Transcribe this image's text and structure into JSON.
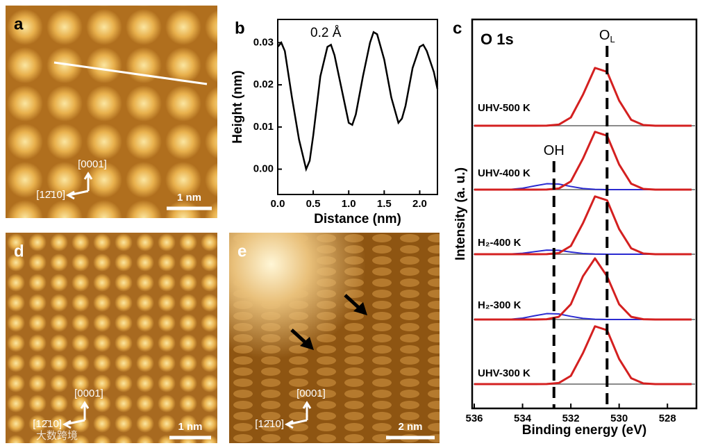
{
  "images": [
    {
      "letter": "a",
      "direction_up": "[0001]",
      "direction_left": "[12̄10]",
      "scale_bar": "1 nm"
    },
    {
      "letter": "d",
      "direction_up": "[0001]",
      "direction_left": "[12̄10]",
      "scale_bar": "1 nm",
      "watermark": "大数跨境"
    },
    {
      "letter": "e",
      "direction_up": "[0001]",
      "direction_left": "[12̄10]",
      "scale_bar": "2 nm"
    }
  ],
  "chart_data": [
    {
      "type": "line",
      "letter": "b",
      "annotation": "0.2 Å",
      "xlabel": "Distance (nm)",
      "ylabel": "Height (nm)",
      "color": "#000000",
      "x": [
        0,
        0.05,
        0.1,
        0.2,
        0.3,
        0.4,
        0.45,
        0.5,
        0.6,
        0.7,
        0.75,
        0.8,
        0.9,
        1.0,
        1.05,
        1.1,
        1.2,
        1.3,
        1.35,
        1.4,
        1.5,
        1.6,
        1.7,
        1.75,
        1.8,
        1.9,
        2.0,
        2.05,
        2.1,
        2.2,
        2.25
      ],
      "values": [
        0.029,
        0.03,
        0.028,
        0.017,
        0.007,
        0.0,
        0.002,
        0.008,
        0.022,
        0.029,
        0.0295,
        0.027,
        0.019,
        0.011,
        0.0105,
        0.013,
        0.022,
        0.03,
        0.0325,
        0.032,
        0.026,
        0.017,
        0.011,
        0.012,
        0.015,
        0.024,
        0.029,
        0.0295,
        0.028,
        0.023,
        0.019
      ],
      "xlim": [
        0,
        2.25
      ],
      "ylim": [
        -0.006,
        0.0355
      ],
      "xticks": [
        {
          "value": 0,
          "label": "0.0"
        },
        0.5,
        {
          "value": 1,
          "label": "1.0"
        },
        1.5,
        {
          "value": 2,
          "label": "2.0"
        }
      ],
      "yticks": [
        {
          "value": 0,
          "label": "0.00"
        },
        0.01,
        0.02,
        0.03
      ]
    },
    {
      "type": "spectra",
      "letter": "c",
      "title": "O 1s",
      "xlabel": "Binding energy (eV)",
      "ylabel": "Intensity (a. u.)",
      "xlim": [
        536,
        527
      ],
      "xticks": [
        536,
        534,
        532,
        530,
        528
      ],
      "ol_color": "#d42020",
      "oh_color": "#2a2ad0",
      "baseline_color": "#8a8a8a",
      "markers": [
        {
          "label": "O",
          "sub": "L",
          "value": 530.5
        },
        {
          "label": "OH",
          "value": 532.7
        }
      ],
      "x": [
        536,
        535.5,
        535,
        534.5,
        534,
        533.5,
        533,
        532.5,
        532,
        531.5,
        531,
        530.5,
        530,
        529.5,
        529,
        528.5,
        528,
        527.5,
        527
      ],
      "spectra": [
        {
          "name": "UHV-500 K",
          "ol": [
            0,
            0,
            0,
            0,
            0,
            0,
            0.001,
            0.018,
            0.135,
            0.506,
            0.946,
            0.882,
            0.411,
            0.096,
            0.011,
            0,
            0,
            0,
            0
          ]
        },
        {
          "name": "UHV-400 K",
          "ol": [
            0,
            0,
            0,
            0,
            0,
            0,
            0.001,
            0.018,
            0.135,
            0.506,
            0.946,
            0.882,
            0.411,
            0.096,
            0.011,
            0,
            0,
            0,
            0
          ],
          "oh": [
            0,
            0,
            0.001,
            0.005,
            0.023,
            0.061,
            0.096,
            0.091,
            0.052,
            0.018,
            0.004,
            0,
            0,
            0,
            0,
            0,
            0,
            0,
            0
          ]
        },
        {
          "name": "H₂-400 K",
          "ol": [
            0,
            0,
            0,
            0,
            0,
            0,
            0.001,
            0.018,
            0.135,
            0.506,
            0.946,
            0.882,
            0.411,
            0.096,
            0.011,
            0,
            0,
            0,
            0
          ],
          "oh": [
            0,
            0,
            0,
            0.004,
            0.016,
            0.042,
            0.067,
            0.064,
            0.036,
            0.012,
            0.003,
            0,
            0,
            0,
            0,
            0,
            0,
            0,
            0
          ]
        },
        {
          "name": "H₂-300 K",
          "ol": [
            0,
            0,
            0,
            0,
            0,
            0,
            0.004,
            0.044,
            0.249,
            0.707,
            1.0,
            0.707,
            0.249,
            0.044,
            0.004,
            0,
            0,
            0,
            0
          ],
          "oh": [
            0,
            0,
            0.001,
            0.005,
            0.023,
            0.061,
            0.096,
            0.091,
            0.052,
            0.018,
            0.004,
            0,
            0,
            0,
            0,
            0,
            0,
            0,
            0
          ]
        },
        {
          "name": "UHV-300 K",
          "ol": [
            0,
            0,
            0,
            0,
            0,
            0,
            0.001,
            0.018,
            0.135,
            0.506,
            0.946,
            0.882,
            0.411,
            0.096,
            0.011,
            0,
            0,
            0,
            0
          ]
        }
      ]
    }
  ]
}
